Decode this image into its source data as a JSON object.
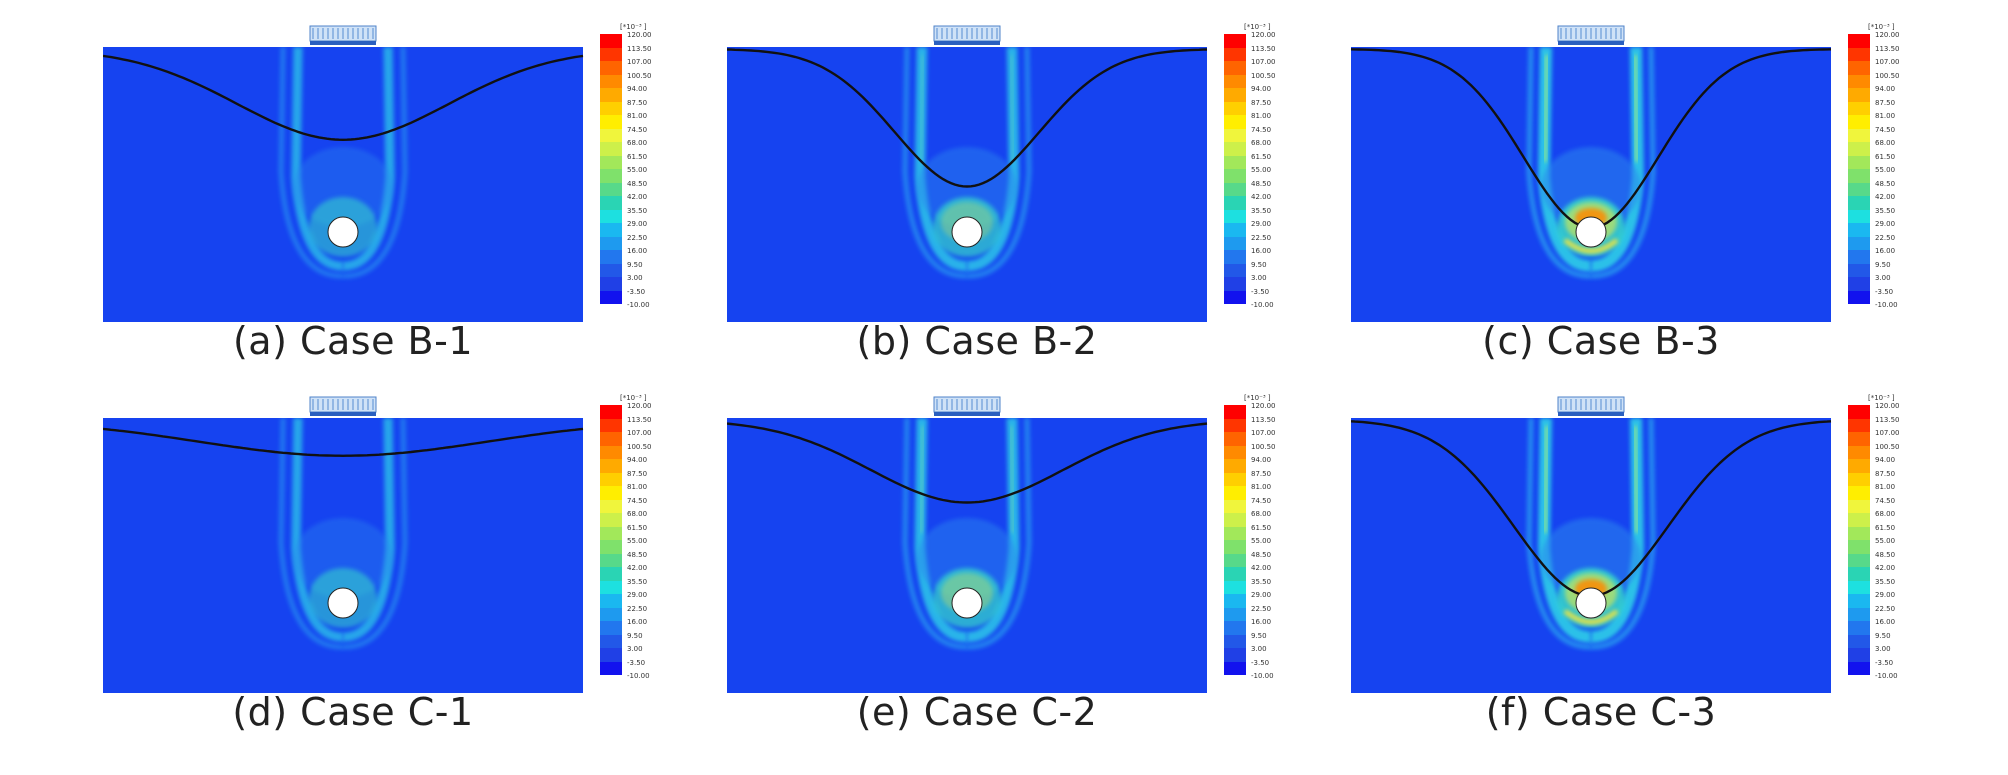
{
  "legend": {
    "unit": "[*10⁻³ ]",
    "labels": [
      "120.00",
      "113.50",
      "107.00",
      "100.50",
      "94.00",
      "87.50",
      "81.00",
      "74.50",
      "68.00",
      "61.50",
      "55.00",
      "48.50",
      "42.00",
      "35.50",
      "29.00",
      "22.50",
      "16.00",
      "9.50",
      "3.00",
      "-3.50",
      "-10.00"
    ],
    "colors": [
      "#ff0000",
      "#ff3500",
      "#ff6400",
      "#ff8a00",
      "#ffaa00",
      "#ffcf00",
      "#ffee00",
      "#f0f53c",
      "#cdf04a",
      "#a2e85a",
      "#7fe16b",
      "#57d98a",
      "#2ad4b4",
      "#1de0e0",
      "#1ab8f0",
      "#1e9aef",
      "#2277ee",
      "#2258e8",
      "#2040e6",
      "#1212ee"
    ]
  },
  "colors": {
    "soil": "#1643f0",
    "settlement_line": "#111111",
    "tunnel": "#ffffff"
  },
  "panels": [
    {
      "caption": "(a) Case B-1",
      "trough_depth": 0.33,
      "trough_width": 0.22,
      "strain": 0.45
    },
    {
      "caption": "(b) Case B-2",
      "trough_depth": 0.5,
      "trough_width": 0.15,
      "strain": 0.7
    },
    {
      "caption": "(c) Case B-3",
      "trough_depth": 0.65,
      "trough_width": 0.14,
      "strain": 1.0
    },
    {
      "caption": "(d) Case C-1",
      "trough_depth": 0.13,
      "trough_width": 0.3,
      "strain": 0.45
    },
    {
      "caption": "(e) Case C-2",
      "trough_depth": 0.3,
      "trough_width": 0.2,
      "strain": 0.75
    },
    {
      "caption": "(f) Case C-3",
      "trough_depth": 0.64,
      "trough_width": 0.16,
      "strain": 1.0
    }
  ]
}
